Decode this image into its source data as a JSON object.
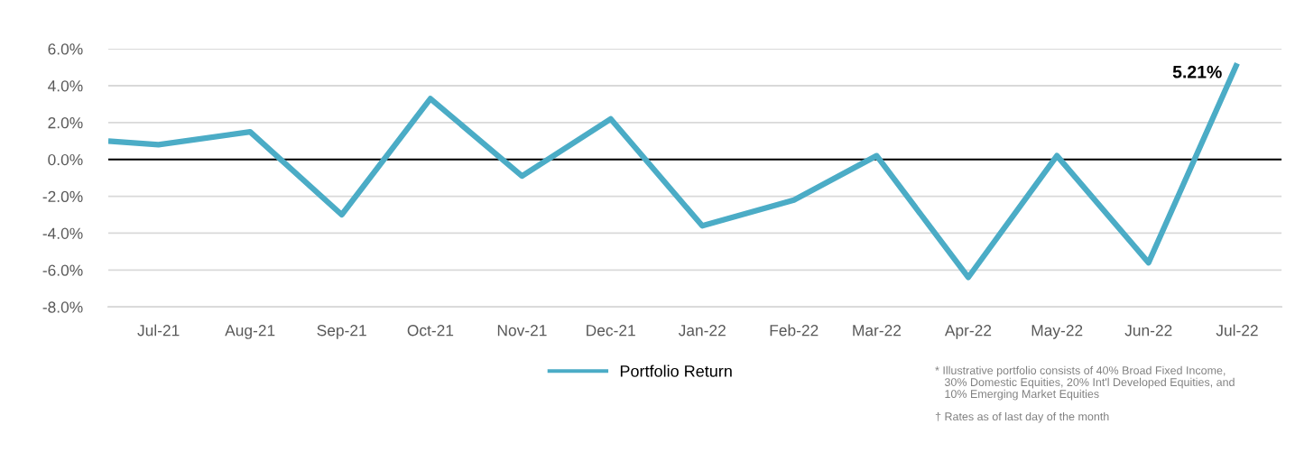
{
  "chart_data": {
    "type": "line",
    "x": [
      "2021-06-14",
      "2021-07",
      "2021-08",
      "2021-09",
      "2021-10",
      "2021-11",
      "2021-12",
      "2022-01",
      "2022-02",
      "2022-03",
      "2022-04",
      "2022-05",
      "2022-06",
      "2022-07"
    ],
    "series": [
      {
        "name": "Portfolio Return",
        "color": "#4bacc6",
        "values": [
          1.0,
          0.8,
          1.5,
          -3.0,
          3.3,
          -0.9,
          2.2,
          -3.6,
          -2.2,
          0.2,
          -6.4,
          0.2,
          -5.6,
          5.21
        ]
      }
    ],
    "xlim": [
      "2021-06-14",
      "2022-07-16"
    ],
    "xticks": [
      {
        "value": "2021-07",
        "label": "Jul-21"
      },
      {
        "value": "2021-08",
        "label": "Aug-21"
      },
      {
        "value": "2021-09",
        "label": "Sep-21"
      },
      {
        "value": "2021-10",
        "label": "Oct-21"
      },
      {
        "value": "2021-11",
        "label": "Nov-21"
      },
      {
        "value": "2021-12",
        "label": "Dec-21"
      },
      {
        "value": "2022-01",
        "label": "Jan-22"
      },
      {
        "value": "2022-02",
        "label": "Feb-22"
      },
      {
        "value": "2022-03",
        "label": "Mar-22"
      },
      {
        "value": "2022-04",
        "label": "Apr-22"
      },
      {
        "value": "2022-05",
        "label": "May-22"
      },
      {
        "value": "2022-06",
        "label": "Jun-22"
      },
      {
        "value": "2022-07",
        "label": "Jul-22"
      }
    ],
    "ylim": [
      -8,
      6
    ],
    "yticks": [
      {
        "value": -8,
        "label": "-8.0%"
      },
      {
        "value": -6,
        "label": "-6.0%"
      },
      {
        "value": -4,
        "label": "-4.0%"
      },
      {
        "value": -2,
        "label": "-2.0%"
      },
      {
        "value": 0,
        "label": "0.0%"
      },
      {
        "value": 2,
        "label": "2.0%"
      },
      {
        "value": 4,
        "label": "4.0%"
      },
      {
        "value": 6,
        "label": "6.0%"
      }
    ],
    "grid": "y",
    "legend": "bottom",
    "marker": "none",
    "line_style": "solid",
    "ref_lines": [
      {
        "axis": "y",
        "value": 0,
        "color": "#000000"
      }
    ],
    "annotations": [
      {
        "text": "5.21%",
        "x": "2022-07",
        "y": 5.21
      },
      "* Illustrative portfolio consists of 40% Broad Fixed Income,\n   30% Domestic Equities, 20% Int'l Developed Equities, and\n   10% Emerging Market Equities",
      "† Rates as of last day of the month"
    ]
  }
}
